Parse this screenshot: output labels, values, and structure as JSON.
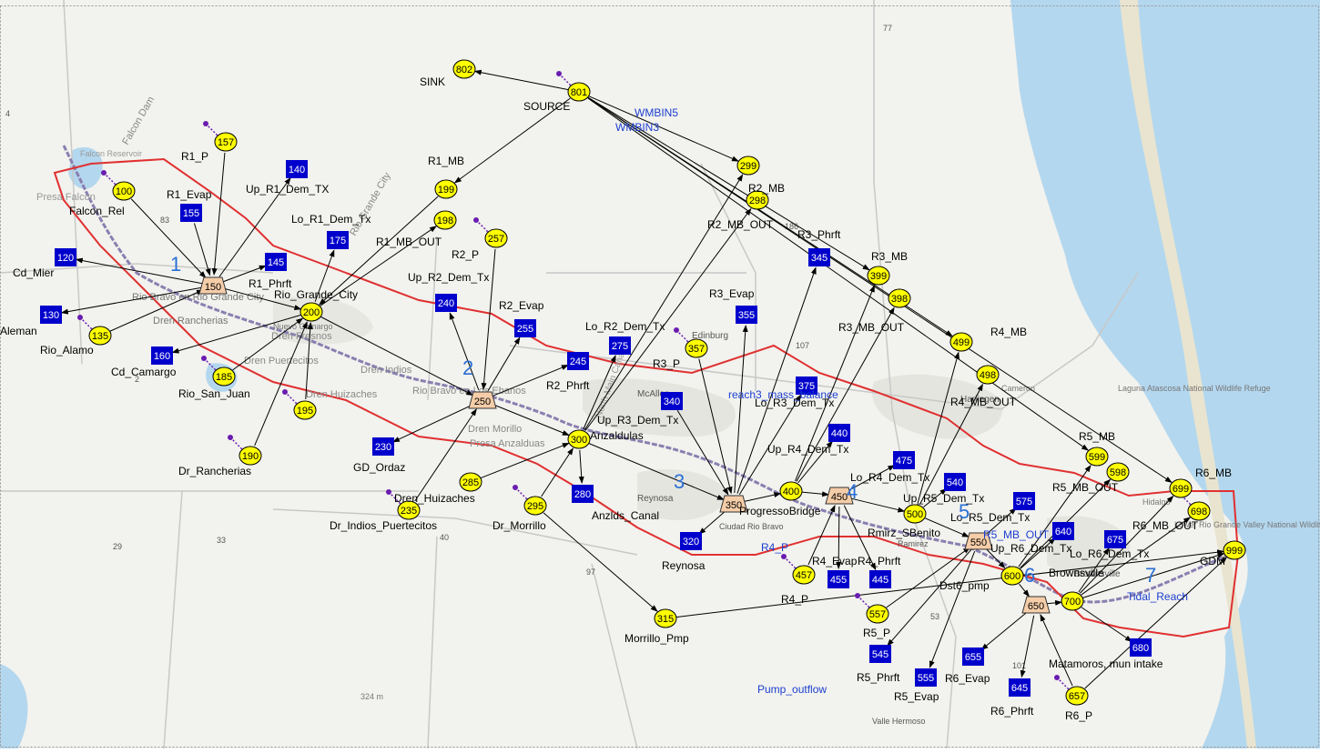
{
  "colors": {
    "water": "#b3d7ee",
    "land": "#f2f2ee",
    "urban": "#dcdcd6",
    "boundary": "#e03030",
    "yellow_node": "#ffff00",
    "blue_node": "#0000cc",
    "reservoir": "#f5cda8",
    "arrow": "#000000",
    "river": "#8a7fb0",
    "blue_label": "#1c3fd0",
    "purple_dot": "#6a1cb0"
  },
  "map_labels": [
    "Falcon Dam",
    "Falcon Reservoir",
    "Presa Falcon",
    "Rio Bravo en Rio Grande City",
    "Dren Rancherias",
    "Rio Grande City",
    "Nuevo Camargo",
    "Dren Fresnos",
    "Dren Puertecitos",
    "Dren Indios",
    "Dren Huizaches",
    "Rio Bravo en Los Ebanos",
    "Dren Morillo",
    "Presa Anzalduas",
    "McAllen",
    "Edinburg",
    "Reynosa",
    "Ciudad Rio Bravo",
    "Ramirez",
    "Harlingen",
    "Brownsville",
    "Laguna Atascosa National Wildlife Refuge",
    "Lower Rio Grande Valley National Wildlife Refuge",
    "Valle Hermoso",
    "324 m",
    "Hidalgo",
    "Cameron",
    "North Main Canal",
    "77",
    "83",
    "186",
    "107",
    "2",
    "29",
    "33",
    "40",
    "97",
    "53",
    "101",
    "4"
  ],
  "reach_numbers": [
    "1",
    "2",
    "3",
    "4",
    "5",
    "6",
    "7"
  ],
  "nodes": [
    {
      "id": "100",
      "type": "yellow",
      "label": "Falcon_Rel"
    },
    {
      "id": "802",
      "type": "yellow",
      "label": "SINK"
    },
    {
      "id": "801",
      "type": "yellow",
      "label": "SOURCE"
    },
    {
      "id": "157",
      "type": "yellow",
      "label": "R1_P"
    },
    {
      "id": "155",
      "type": "blue",
      "label": "R1_Evap"
    },
    {
      "id": "140",
      "type": "blue",
      "label": "Up_R1_Dem_TX"
    },
    {
      "id": "120",
      "type": "blue",
      "label": "Cd_Mier"
    },
    {
      "id": "130",
      "type": "blue",
      "label": "Aleman"
    },
    {
      "id": "135",
      "type": "yellow",
      "label": "Rio_Alamo"
    },
    {
      "id": "150",
      "type": "reservoir",
      "label": ""
    },
    {
      "id": "145",
      "type": "blue",
      "label": "R1_Phrft"
    },
    {
      "id": "175",
      "type": "blue",
      "label": "Lo_R1_Dem_Tx"
    },
    {
      "id": "199",
      "type": "yellow",
      "label": "R1_MB"
    },
    {
      "id": "198",
      "type": "yellow",
      "label": "R1_MB_OUT"
    },
    {
      "id": "200",
      "type": "yellow",
      "label": "Rio_Grande_City"
    },
    {
      "id": "160",
      "type": "blue",
      "label": "Cd_Camargo"
    },
    {
      "id": "185",
      "type": "yellow",
      "label": "Rio_San_Juan"
    },
    {
      "id": "195",
      "type": "yellow",
      "label": ""
    },
    {
      "id": "190",
      "type": "yellow",
      "label": "Dr_Rancherias"
    },
    {
      "id": "257",
      "type": "yellow",
      "label": "R2_P"
    },
    {
      "id": "240",
      "type": "blue",
      "label": "Up_R2_Dem_Tx"
    },
    {
      "id": "255",
      "type": "blue",
      "label": "R2_Evap"
    },
    {
      "id": "245",
      "type": "blue",
      "label": "R2_Phrft"
    },
    {
      "id": "250",
      "type": "reservoir",
      "label": ""
    },
    {
      "id": "230",
      "type": "blue",
      "label": "GD_Ordaz"
    },
    {
      "id": "235",
      "type": "yellow",
      "label": "Dr_Indios_Puertecitos"
    },
    {
      "id": "285",
      "type": "yellow",
      "label": "Dren_Huizaches"
    },
    {
      "id": "295",
      "type": "yellow",
      "label": "Dr_Morrillo"
    },
    {
      "id": "300",
      "type": "yellow",
      "label": "Anzaldulas"
    },
    {
      "id": "275",
      "type": "blue",
      "label": "Lo_R2_Dem_Tx"
    },
    {
      "id": "280",
      "type": "blue",
      "label": "Anzlds_Canal"
    },
    {
      "id": "299",
      "type": "yellow",
      "label": "R2_MB"
    },
    {
      "id": "298",
      "type": "yellow",
      "label": "R2_MB_OUT"
    },
    {
      "id": "357",
      "type": "yellow",
      "label": "R3_P"
    },
    {
      "id": "340",
      "type": "blue",
      "label": "Up_R3_Dem_Tx"
    },
    {
      "id": "355",
      "type": "blue",
      "label": "R3_Evap"
    },
    {
      "id": "345",
      "type": "blue",
      "label": "R3_Phrft"
    },
    {
      "id": "375",
      "type": "blue",
      "label": "Lo_R3_Dem_Tx"
    },
    {
      "id": "350",
      "type": "reservoir",
      "label": ""
    },
    {
      "id": "320",
      "type": "blue",
      "label": "Reynosa"
    },
    {
      "id": "315",
      "type": "yellow",
      "label": "Morrillo_Pmp"
    },
    {
      "id": "400",
      "type": "yellow",
      "label": "ProgressoBridge"
    },
    {
      "id": "399",
      "type": "yellow",
      "label": "R3_MB"
    },
    {
      "id": "398",
      "type": "yellow",
      "label": "R3_MB_OUT"
    },
    {
      "id": "440",
      "type": "blue",
      "label": "Up_R4_Dem_Tx"
    },
    {
      "id": "450",
      "type": "reservoir",
      "label": ""
    },
    {
      "id": "457",
      "type": "yellow",
      "label": "R4_P"
    },
    {
      "id": "455",
      "type": "blue",
      "label": "R4_Evap"
    },
    {
      "id": "445",
      "type": "blue",
      "label": "R4_Phrft"
    },
    {
      "id": "475",
      "type": "blue",
      "label": "Lo_R4_Dem_Tx"
    },
    {
      "id": "499",
      "type": "yellow",
      "label": "R4_MB"
    },
    {
      "id": "498",
      "type": "yellow",
      "label": "R4_MB_OUT"
    },
    {
      "id": "500",
      "type": "yellow",
      "label": "Rmirz_SBenito"
    },
    {
      "id": "540",
      "type": "blue",
      "label": "Up_R5_Dem_Tx"
    },
    {
      "id": "557",
      "type": "yellow",
      "label": "R5_P"
    },
    {
      "id": "545",
      "type": "blue",
      "label": "R5_Phrft"
    },
    {
      "id": "555",
      "type": "blue",
      "label": "R5_Evap"
    },
    {
      "id": "575",
      "type": "blue",
      "label": "Lo_R5_Dem_Tx"
    },
    {
      "id": "550",
      "type": "reservoir",
      "label": ""
    },
    {
      "id": "599",
      "type": "yellow",
      "label": "R5_MB"
    },
    {
      "id": "598",
      "type": "yellow",
      "label": "R5_MB_OUT"
    },
    {
      "id": "600",
      "type": "yellow",
      "label": "Dst6_pmp"
    },
    {
      "id": "640",
      "type": "blue",
      "label": "Up_R6_Dem_Tx"
    },
    {
      "id": "650",
      "type": "reservoir",
      "label": ""
    },
    {
      "id": "655",
      "type": "blue",
      "label": "R6_Evap"
    },
    {
      "id": "645",
      "type": "blue",
      "label": "R6_Phrft"
    },
    {
      "id": "657",
      "type": "yellow",
      "label": "R6_P"
    },
    {
      "id": "700",
      "type": "yellow",
      "label": "Brownsville"
    },
    {
      "id": "675",
      "type": "blue",
      "label": "Lo_R6_Dem_Tx"
    },
    {
      "id": "680",
      "type": "blue",
      "label": "Matamoros, mun intake"
    },
    {
      "id": "699",
      "type": "yellow",
      "label": "R6_MB"
    },
    {
      "id": "698",
      "type": "yellow",
      "label": "R6_MB_OUT"
    },
    {
      "id": "999",
      "type": "yellow",
      "label": "GDM"
    }
  ],
  "blue_link_labels": [
    "WMBIN5",
    "WMBIN3",
    "reach3_mass_balance",
    "R4_P",
    "R5_MB_OUT",
    "Tidal_Reach",
    "Pump_outflow"
  ]
}
